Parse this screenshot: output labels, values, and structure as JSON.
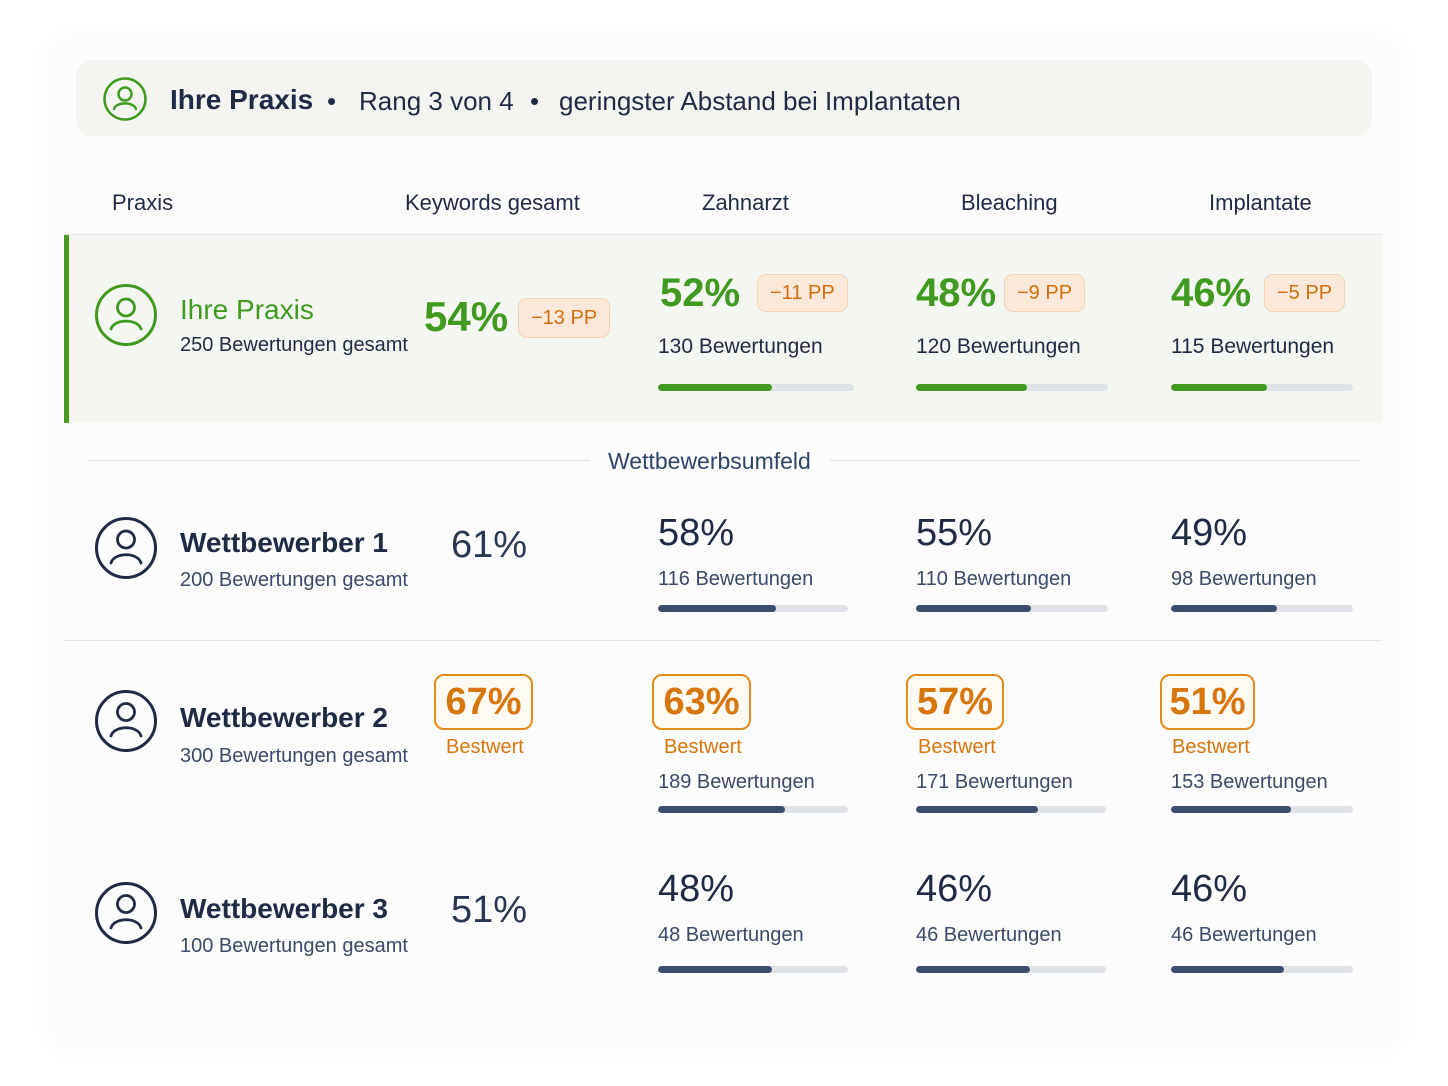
{
  "banner": {
    "title": "Ihre Praxis",
    "separator": "•",
    "rank": "Rang 3 von 4",
    "note": "geringster Abstand bei Implantaten",
    "icon": "user-circle-icon"
  },
  "columns": [
    "Praxis",
    "Keywords gesamt",
    "Zahnarzt",
    "Bleaching",
    "Implantate"
  ],
  "own": {
    "name": "Ihre Praxis",
    "total_reviews": "250 Bewertungen gesamt",
    "keywords": {
      "value": "54%",
      "gap": "−13 PP"
    },
    "categories": [
      {
        "value": "52%",
        "gap": "−11 PP",
        "reviews": "130 Bewertungen",
        "progress": 0.58
      },
      {
        "value": "48%",
        "gap": "−9 PP",
        "reviews": "120 Bewertungen",
        "progress": 0.58
      },
      {
        "value": "46%",
        "gap": "−5 PP",
        "reviews": "115 Bewertungen",
        "progress": 0.53
      }
    ]
  },
  "section_label": "Wettbewerbsumfeld",
  "competitors": [
    {
      "name": "Wettbewerber 1",
      "total_reviews": "200 Bewertungen gesamt",
      "keywords": "61%",
      "categories": [
        {
          "value": "58%",
          "reviews": "116 Bewertungen",
          "progress": 0.62
        },
        {
          "value": "55%",
          "reviews": "110 Bewertungen",
          "progress": 0.6
        },
        {
          "value": "49%",
          "reviews": "98 Bewertungen",
          "progress": 0.58
        }
      ]
    },
    {
      "name": "Wettbewerber 2",
      "total_reviews": "300 Bewertungen gesamt",
      "keywords": "67%",
      "best_label": "Bestwert",
      "categories": [
        {
          "value": "63%",
          "reviews": "189 Bewertungen",
          "progress": 0.67
        },
        {
          "value": "57%",
          "reviews": "171 Bewertungen",
          "progress": 0.64
        },
        {
          "value": "51%",
          "reviews": "153 Bewertungen",
          "progress": 0.66
        }
      ]
    },
    {
      "name": "Wettbewerber 3",
      "total_reviews": "100 Bewertungen gesamt",
      "keywords": "51%",
      "categories": [
        {
          "value": "48%",
          "reviews": "48 Bewertungen",
          "progress": 0.6
        },
        {
          "value": "46%",
          "reviews": "46 Bewertungen",
          "progress": 0.6
        },
        {
          "value": "46%",
          "reviews": "46 Bewertungen",
          "progress": 0.62
        }
      ]
    }
  ],
  "colors": {
    "green": "#3f9a1f",
    "navy": "#1f2a44",
    "orange": "#d6760c",
    "bar_track": "#dfe2e7"
  }
}
